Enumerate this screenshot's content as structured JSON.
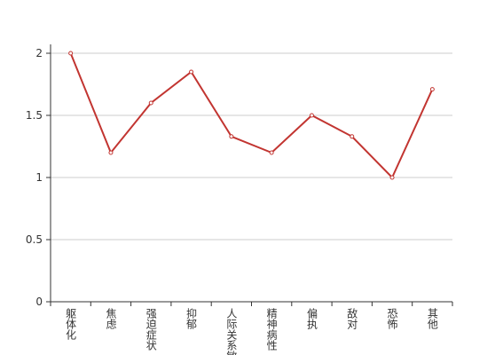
{
  "chart_data": {
    "type": "line",
    "categories": [
      "躯体化",
      "焦虑",
      "强迫症状",
      "抑郁",
      "人际关系敏感",
      "精神病性",
      "偏执",
      "敌对",
      "恐怖",
      "其他"
    ],
    "series": [
      {
        "color": "#c23531",
        "values": [
          2,
          1.2,
          1.6,
          1.85,
          1.33,
          1.2,
          1.5,
          1.33,
          1,
          1.71
        ]
      }
    ],
    "ylim": [
      0,
      2
    ],
    "yticks": [
      0,
      0.5,
      1,
      1.5,
      2
    ],
    "grid": true
  }
}
